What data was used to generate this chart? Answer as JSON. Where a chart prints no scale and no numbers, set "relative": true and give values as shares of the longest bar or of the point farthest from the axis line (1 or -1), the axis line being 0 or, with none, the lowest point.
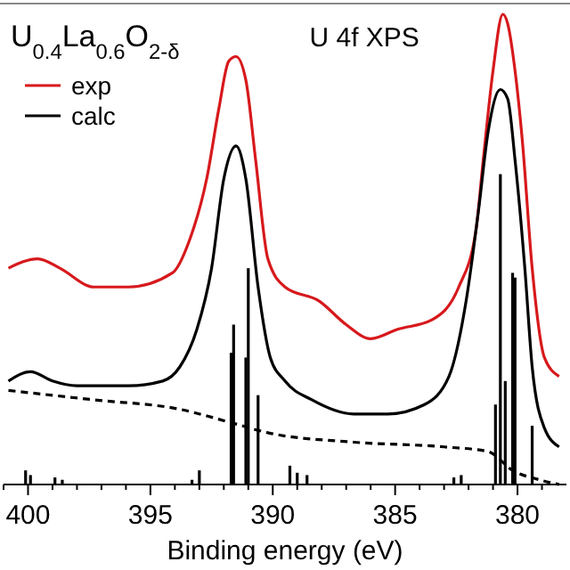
{
  "chart_data": {
    "type": "line",
    "title": "U$_{0.4}$La$_{0.6}$O$_{2-δ}$",
    "xlabel": "Binding energy (eV)",
    "annotations": [
      "U 4f XPS"
    ],
    "relative": true,
    "legend": "top left",
    "xlim": [
      401,
      378
    ],
    "xticks": [
      {
        "value": 401,
        "label": null
      },
      400,
      {
        "value": 399,
        "label": null
      },
      {
        "value": 398,
        "label": null
      },
      {
        "value": 397,
        "label": null
      },
      {
        "value": 396,
        "label": null
      },
      395,
      {
        "value": 394,
        "label": null
      },
      {
        "value": 393,
        "label": null
      },
      {
        "value": 392,
        "label": null
      },
      {
        "value": 391,
        "label": null
      },
      390,
      {
        "value": 389,
        "label": null
      },
      {
        "value": 388,
        "label": null
      },
      {
        "value": 387,
        "label": null
      },
      {
        "value": 386,
        "label": null
      },
      385,
      {
        "value": 384,
        "label": null
      },
      {
        "value": 383,
        "label": null
      },
      {
        "value": 382,
        "label": null
      },
      {
        "value": 381,
        "label": null
      },
      380,
      {
        "value": 379,
        "label": null
      }
    ],
    "series": [
      {
        "name": "exp",
        "color": "#d7191c",
        "x": [
          400.8,
          399.6,
          398.7,
          397.3,
          395.9,
          394.1,
          393.4,
          392.7,
          392.2,
          391.8,
          391.5,
          391.1,
          390.7,
          390.2,
          389.5,
          388.1,
          387.0,
          386.0,
          384.9,
          383.5,
          382.4,
          381.7,
          381.4,
          381.0,
          380.6,
          380.4,
          380.1,
          379.8,
          379.4,
          378.9,
          378.3
        ],
        "values": [
          0.46,
          0.48,
          0.46,
          0.42,
          0.42,
          0.45,
          0.52,
          0.65,
          0.8,
          0.9,
          0.91,
          0.86,
          0.69,
          0.48,
          0.42,
          0.39,
          0.34,
          0.31,
          0.33,
          0.35,
          0.42,
          0.54,
          0.69,
          0.88,
          1.0,
          0.98,
          0.88,
          0.73,
          0.46,
          0.27,
          0.23
        ]
      },
      {
        "name": "calc",
        "color": "#000000",
        "x": [
          400.8,
          399.9,
          399.0,
          398.0,
          395.9,
          394.5,
          393.8,
          393.1,
          392.5,
          392.0,
          391.5,
          391.1,
          390.6,
          390.1,
          389.5,
          388.4,
          386.7,
          385.3,
          383.8,
          382.8,
          382.1,
          381.6,
          381.2,
          380.7,
          380.4,
          380.1,
          379.7,
          379.4,
          378.9,
          378.3
        ],
        "values": [
          0.22,
          0.24,
          0.22,
          0.21,
          0.21,
          0.22,
          0.25,
          0.33,
          0.46,
          0.65,
          0.72,
          0.65,
          0.42,
          0.27,
          0.22,
          0.18,
          0.15,
          0.15,
          0.17,
          0.23,
          0.39,
          0.58,
          0.75,
          0.84,
          0.82,
          0.69,
          0.46,
          0.25,
          0.12,
          0.08
        ]
      },
      {
        "color": "#000000",
        "line_style": "dashed",
        "x": [
          400.8,
          397.3,
          393.8,
          391.6,
          390.2,
          386.7,
          383.0,
          381.2,
          380.2,
          379.1,
          378.3
        ],
        "values": [
          0.2,
          0.18,
          0.16,
          0.13,
          0.11,
          0.09,
          0.08,
          0.07,
          0.03,
          0.01,
          0.0
        ]
      },
      {
        "type": "bar",
        "color": "#000000",
        "x": [
          400.1,
          399.9,
          398.9,
          398.6,
          393.3,
          393.0,
          391.7,
          391.6,
          391.1,
          391.0,
          390.6,
          389.3,
          389.0,
          388.6,
          382.6,
          382.3,
          380.9,
          380.7,
          380.5,
          380.2,
          380.1,
          379.4
        ],
        "values": [
          0.03,
          0.02,
          0.015,
          0.01,
          0.01,
          0.03,
          0.28,
          0.34,
          0.27,
          0.46,
          0.19,
          0.04,
          0.025,
          0.02,
          0.015,
          0.02,
          0.17,
          0.66,
          0.22,
          0.45,
          0.44,
          0.125
        ]
      }
    ]
  }
}
